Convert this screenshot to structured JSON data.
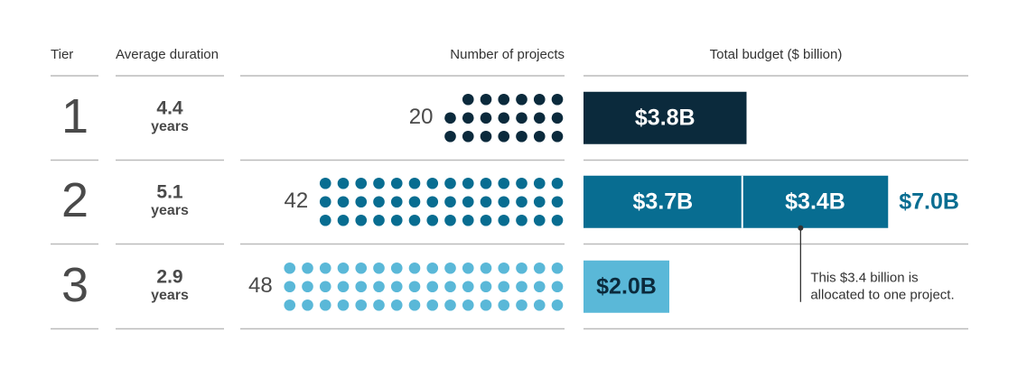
{
  "headers": [
    "Tier",
    "Average duration",
    "Number of projects",
    "Total budget ($ billion)"
  ],
  "rows": [
    {
      "tier": 1,
      "duration": 4.4,
      "unit": "years",
      "projects": 20,
      "color": "#0b2a3c",
      "label_color": "#ffffff",
      "budget": [
        {
          "value": 3.8,
          "label": "$3.8B"
        }
      ]
    },
    {
      "tier": 2,
      "duration": 5.1,
      "unit": "years",
      "projects": 42,
      "color": "#086d91",
      "label_color": "#ffffff",
      "budget": [
        {
          "value": 3.7,
          "label": "$3.7B"
        },
        {
          "value": 3.4,
          "label": "$3.4B"
        }
      ],
      "total": {
        "value": 7.0,
        "label": "$7.0B"
      }
    },
    {
      "tier": 3,
      "duration": 2.9,
      "unit": "years",
      "projects": 48,
      "color": "#5ab8d8",
      "label_color": "#0b2a3c",
      "budget": [
        {
          "value": 2.0,
          "label": "$2.0B"
        }
      ]
    }
  ],
  "annotation": [
    "This $3.4 billion is",
    "allocated to one project."
  ]
}
